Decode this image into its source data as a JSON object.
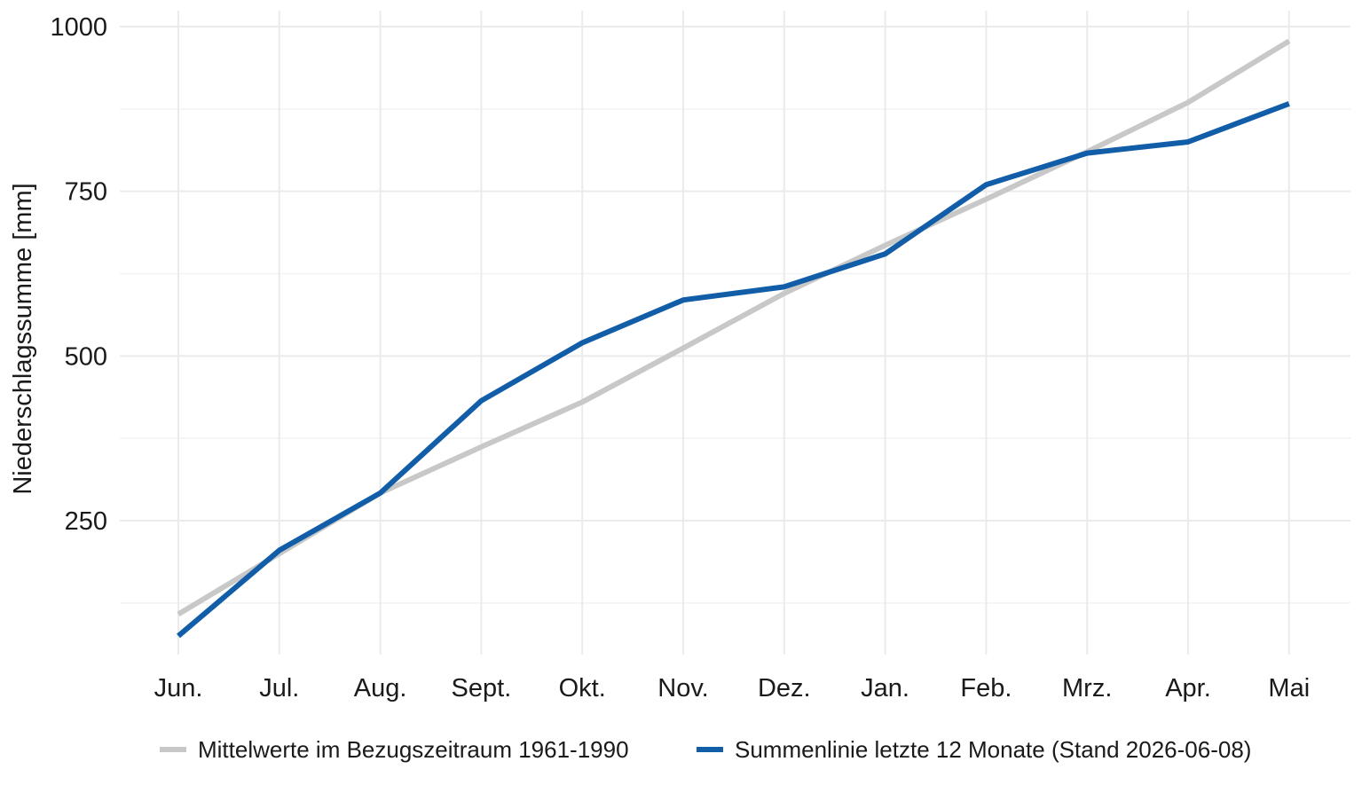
{
  "chart_data": {
    "type": "line",
    "title": "",
    "xlabel": "",
    "ylabel": "Niederschlagssumme [mm]",
    "categories": [
      "Jun.",
      "Jul.",
      "Aug.",
      "Sept.",
      "Okt.",
      "Nov.",
      "Dez.",
      "Jan.",
      "Feb.",
      "Mrz.",
      "Apr.",
      "Mai"
    ],
    "yticks": [
      250,
      500,
      750,
      1000
    ],
    "ylim": [
      50,
      1000
    ],
    "grid": true,
    "legend_position": "bottom",
    "series": [
      {
        "name": "Mittelwerte im Bezugszeitraum 1961-1990",
        "color": "#c8c8c8",
        "values": [
          108,
          200,
          292,
          362,
          430,
          512,
          595,
          668,
          738,
          810,
          885,
          978
        ]
      },
      {
        "name": "Summenlinie letzte 12 Monate (Stand 2026-06-08)",
        "color": "#115da8",
        "values": [
          75,
          205,
          292,
          432,
          520,
          585,
          605,
          655,
          760,
          808,
          825,
          883
        ]
      }
    ]
  }
}
